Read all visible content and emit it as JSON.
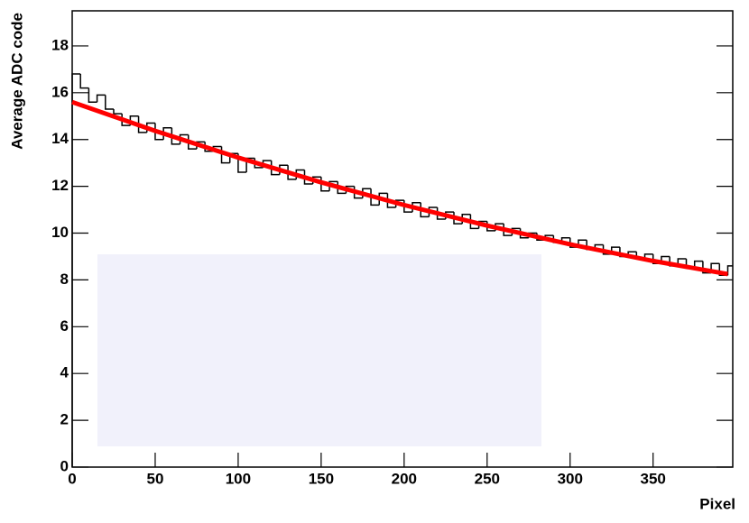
{
  "chart_data": {
    "type": "histogram",
    "x_label": "Pixel",
    "y_label": "Average ADC code",
    "xlim": [
      0,
      398
    ],
    "xticks": [
      0,
      50,
      100,
      150,
      200,
      250,
      300,
      350
    ],
    "ylim": [
      0,
      19.5
    ],
    "yticks": [
      0,
      2,
      4,
      6,
      8,
      10,
      12,
      14,
      16,
      18
    ],
    "color": "#000000",
    "bins": [
      0,
      5,
      10,
      15,
      20,
      25,
      30,
      35,
      40,
      45,
      50,
      55,
      60,
      65,
      70,
      75,
      80,
      85,
      90,
      95,
      100,
      105,
      110,
      115,
      120,
      125,
      130,
      135,
      140,
      145,
      150,
      155,
      160,
      165,
      170,
      175,
      180,
      185,
      190,
      195,
      200,
      205,
      210,
      215,
      220,
      225,
      230,
      235,
      240,
      245,
      250,
      255,
      260,
      265,
      270,
      275,
      280,
      285,
      290,
      295,
      300,
      305,
      310,
      315,
      320,
      325,
      330,
      335,
      340,
      345,
      350,
      355,
      360,
      365,
      370,
      375,
      380,
      385,
      390,
      395,
      398
    ],
    "counts": [
      16.8,
      16.2,
      15.6,
      15.9,
      15.3,
      15.1,
      14.6,
      15.0,
      14.3,
      14.7,
      14.0,
      14.5,
      13.8,
      14.2,
      13.6,
      13.9,
      13.5,
      13.7,
      13.0,
      13.4,
      12.6,
      13.2,
      12.8,
      13.1,
      12.5,
      12.9,
      12.3,
      12.7,
      12.1,
      12.4,
      11.8,
      12.2,
      11.7,
      12.0,
      11.5,
      11.9,
      11.2,
      11.7,
      11.1,
      11.4,
      10.9,
      11.3,
      10.7,
      11.1,
      10.6,
      10.9,
      10.4,
      10.8,
      10.2,
      10.5,
      10.1,
      10.4,
      9.9,
      10.2,
      9.8,
      10.0,
      9.7,
      9.9,
      9.6,
      9.8,
      9.4,
      9.7,
      9.3,
      9.5,
      9.1,
      9.4,
      9.0,
      9.2,
      8.9,
      9.1,
      8.7,
      9.0,
      8.6,
      8.9,
      8.5,
      8.8,
      8.3,
      8.7,
      8.2,
      8.6
    ],
    "fit": {
      "type": "line",
      "color": "#ff0000",
      "x": [
        0,
        50,
        100,
        150,
        200,
        250,
        300,
        350,
        395
      ],
      "values": [
        15.6,
        14.37,
        13.23,
        12.17,
        11.2,
        10.32,
        9.52,
        8.81,
        8.25
      ]
    }
  }
}
